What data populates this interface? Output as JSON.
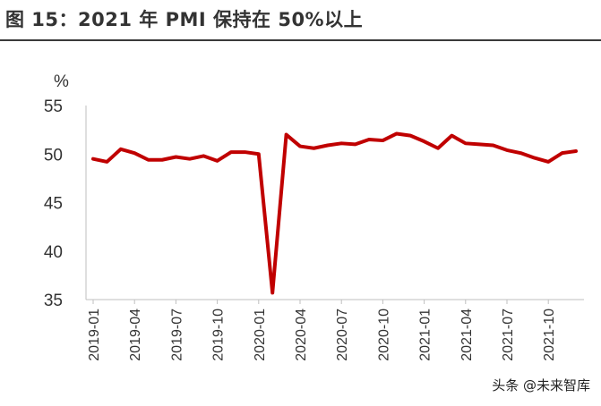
{
  "title": "图 15：2021 年 PMI 保持在 50%以上",
  "watermark": "头条 @未来智库",
  "colors": {
    "line": "#c00000",
    "axis": "#bfbfbf",
    "text": "#333333"
  },
  "chart_data": {
    "type": "line",
    "title": "图 15：2021 年 PMI 保持在 50%以上",
    "xlabel": "",
    "ylabel": "%",
    "ylim": [
      35,
      55
    ],
    "yticks": [
      35,
      40,
      45,
      50,
      55
    ],
    "grid": false,
    "x": [
      "2019-01",
      "2019-02",
      "2019-03",
      "2019-04",
      "2019-05",
      "2019-06",
      "2019-07",
      "2019-08",
      "2019-09",
      "2019-10",
      "2019-11",
      "2019-12",
      "2020-01",
      "2020-02",
      "2020-03",
      "2020-04",
      "2020-05",
      "2020-06",
      "2020-07",
      "2020-08",
      "2020-09",
      "2020-10",
      "2020-11",
      "2020-12",
      "2021-01",
      "2021-02",
      "2021-03",
      "2021-04",
      "2021-05",
      "2021-06",
      "2021-07",
      "2021-08",
      "2021-09",
      "2021-10",
      "2021-11",
      "2021-12"
    ],
    "xtick_labels": [
      "2019-01",
      "2019-04",
      "2019-07",
      "2019-10",
      "2020-01",
      "2020-04",
      "2020-07",
      "2020-10",
      "2021-01",
      "2021-04",
      "2021-07",
      "2021-10"
    ],
    "series": [
      {
        "values": [
          49.5,
          49.2,
          50.5,
          50.1,
          49.4,
          49.4,
          49.7,
          49.5,
          49.8,
          49.3,
          50.2,
          50.2,
          50.0,
          35.7,
          52.0,
          50.8,
          50.6,
          50.9,
          51.1,
          51.0,
          51.5,
          51.4,
          52.1,
          51.9,
          51.3,
          50.6,
          51.9,
          51.1,
          51.0,
          50.9,
          50.4,
          50.1,
          49.6,
          49.2,
          50.1,
          50.3
        ]
      }
    ]
  }
}
